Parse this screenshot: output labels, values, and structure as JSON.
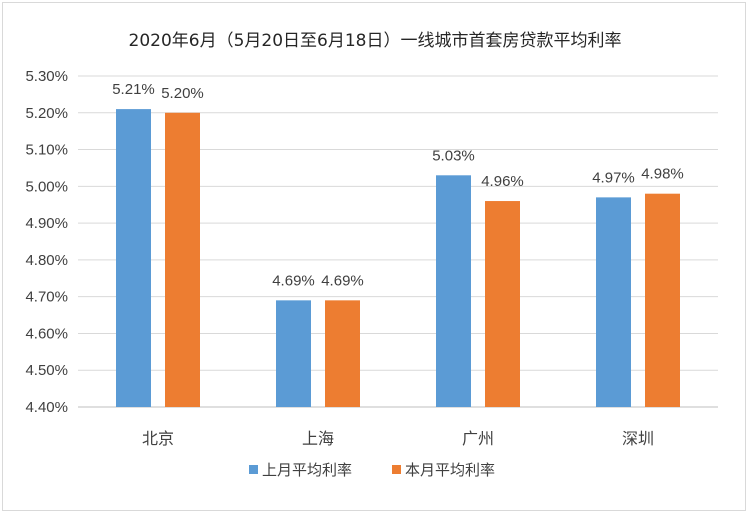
{
  "chart_data": {
    "type": "bar",
    "title": "2020年6月（5月20日至6月18日）一线城市首套房贷款平均利率",
    "categories": [
      "北京",
      "上海",
      "广州",
      "深圳"
    ],
    "series": [
      {
        "name": "上月平均利率",
        "values": [
          5.21,
          4.69,
          5.03,
          4.97
        ],
        "labels": [
          "5.21%",
          "4.69%",
          "5.03%",
          "4.97%"
        ],
        "color": "#5b9bd5"
      },
      {
        "name": "本月平均利率",
        "values": [
          5.2,
          4.69,
          4.96,
          4.98
        ],
        "labels": [
          "5.20%",
          "4.69%",
          "4.96%",
          "4.98%"
        ],
        "color": "#ed7d31"
      }
    ],
    "ylim": [
      4.4,
      5.3
    ],
    "yticks": [
      "4.40%",
      "4.50%",
      "4.60%",
      "4.70%",
      "4.80%",
      "4.90%",
      "5.00%",
      "5.10%",
      "5.20%",
      "5.30%"
    ],
    "grid": true,
    "legend_position": "bottom",
    "xlabel": "",
    "ylabel": ""
  }
}
